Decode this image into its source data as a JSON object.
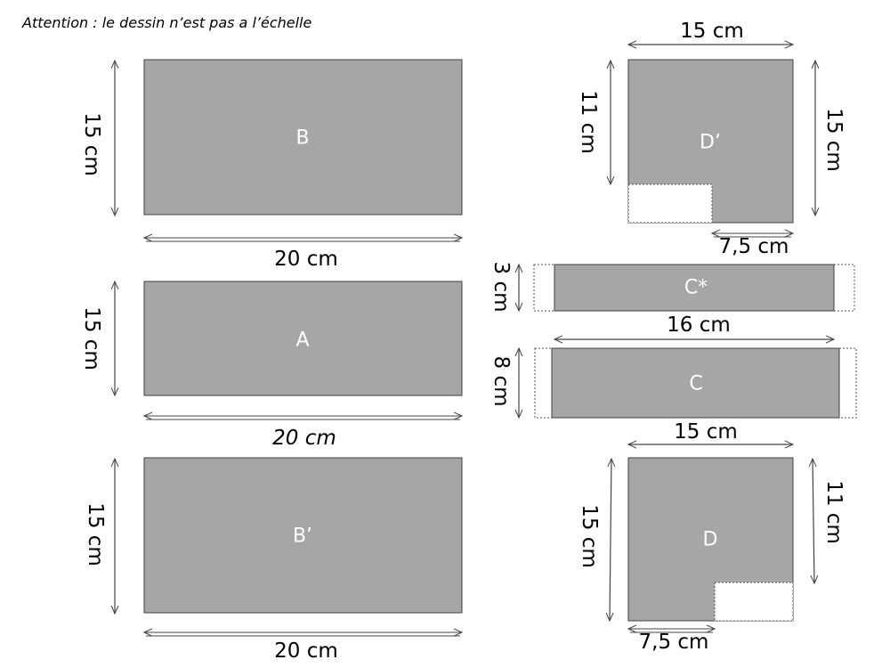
{
  "note": "Attention : le dessin n’est pas a l’échelle",
  "shapes": {
    "B": {
      "label": "B",
      "width": "20 cm",
      "height": "15 cm"
    },
    "A": {
      "label": "A",
      "width": "20 cm",
      "height": "15 cm"
    },
    "Bprime": {
      "label": "B’",
      "width": "20 cm",
      "height": "15 cm"
    },
    "Dprime": {
      "label": "D’",
      "top": "15 cm",
      "left": "11 cm",
      "right": "15 cm",
      "notch": "7,5 cm"
    },
    "Cstar": {
      "label": "C*",
      "height": "3 cm",
      "width": "16 cm"
    },
    "C": {
      "label": "C",
      "height": "8 cm"
    },
    "D": {
      "label": "D",
      "top": "15 cm",
      "left": "15 cm",
      "right": "11 cm",
      "notch": "7,5 cm"
    }
  },
  "colors": {
    "fill": "#a6a6a6",
    "label": "#ffffff"
  }
}
